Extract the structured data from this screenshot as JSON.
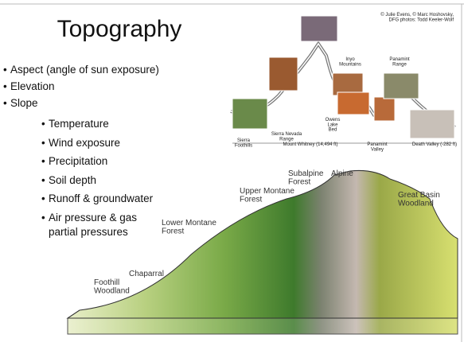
{
  "slide": {
    "title": "Topography",
    "bullets": [
      "Aspect (angle of sun exposure)",
      "Elevation",
      "Slope"
    ],
    "sub_bullets": [
      "Temperature",
      "Wind exposure",
      "Precipitation",
      "Soil depth",
      "Runoff & groundwater",
      [
        "Air pressure & gas",
        "partial pressures"
      ]
    ],
    "profile_figure": {
      "credit": [
        "© Julie Evens, © Marc Hoshovsky,",
        "DFG photos: Todd Keeler-Wolf"
      ],
      "labels": {
        "inyo": [
          "Inyo",
          "Mountains"
        ],
        "panamint_range": [
          "Panamint",
          "Range"
        ],
        "owens": [
          "Owens",
          "Lake",
          "Bed"
        ],
        "sierra_nevada": [
          "Sierra Nevada",
          "Range"
        ],
        "sierra_foothills": [
          "Sierra",
          "Foothills"
        ],
        "whitney": "Mount Whitney (14,494 ft)",
        "panamint_valley": [
          "Panamint",
          "Valley"
        ],
        "death_valley": "Death Valley (-282 ft)"
      }
    },
    "zones_figure": {
      "foothill": [
        "Foothill",
        "Woodland"
      ],
      "chaparral": "Chaparral",
      "lower_montane": [
        "Lower Montane",
        "Forest"
      ],
      "upper_montane": [
        "Upper Montane",
        "Forest"
      ],
      "subalpine": [
        "Subalpine",
        "Forest"
      ],
      "alpine": "Alpine",
      "great_basin": [
        "Great Basin",
        "Woodland"
      ]
    }
  }
}
